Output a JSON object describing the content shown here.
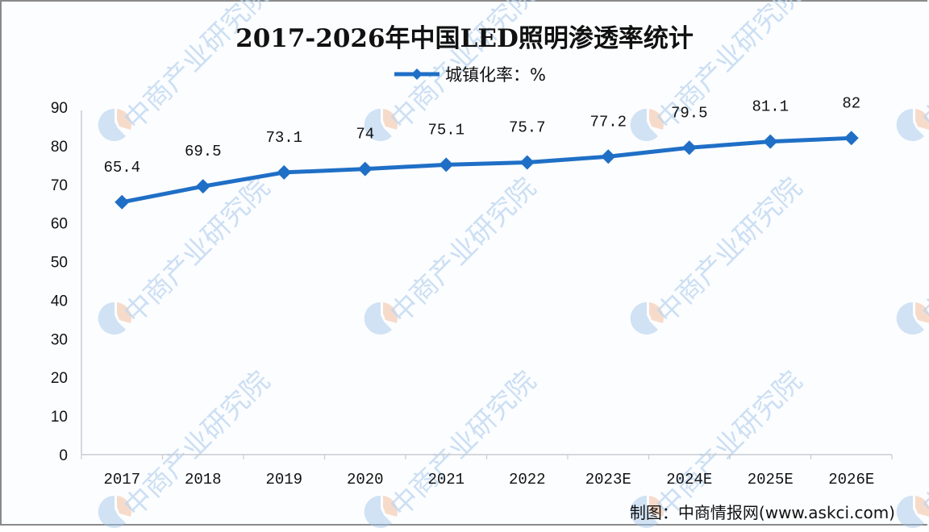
{
  "title": "2017-2026年中国LED照明渗透率统计",
  "legend": {
    "label": "城镇化率：%",
    "color": "#1f6fc6"
  },
  "source": "制图：中商情报网(www.askci.com)",
  "watermark": {
    "text": "中商产业研究院"
  },
  "colors": {
    "line": "#1f6fc6",
    "axis": "#c8ccd2",
    "text": "#111111"
  },
  "chart_data": {
    "type": "line",
    "title": "2017-2026年中国LED照明渗透率统计",
    "xlabel": "",
    "ylabel": "",
    "categories": [
      "2017",
      "2018",
      "2019",
      "2020",
      "2021",
      "2022",
      "2023E",
      "2024E",
      "2025E",
      "2026E"
    ],
    "series": [
      {
        "name": "城镇化率：%",
        "values": [
          65.4,
          69.5,
          73.1,
          74,
          75.1,
          75.7,
          77.2,
          79.5,
          81.1,
          82
        ]
      }
    ],
    "data_labels": [
      "65.4",
      "69.5",
      "73.1",
      "74",
      "75.1",
      "75.7",
      "77.2",
      "79.5",
      "81.1",
      "82"
    ],
    "yticks": [
      0,
      10,
      20,
      30,
      40,
      50,
      60,
      70,
      80,
      90
    ],
    "ylim": [
      0,
      90
    ],
    "grid": false,
    "legend_position": "top",
    "marker": "diamond"
  }
}
